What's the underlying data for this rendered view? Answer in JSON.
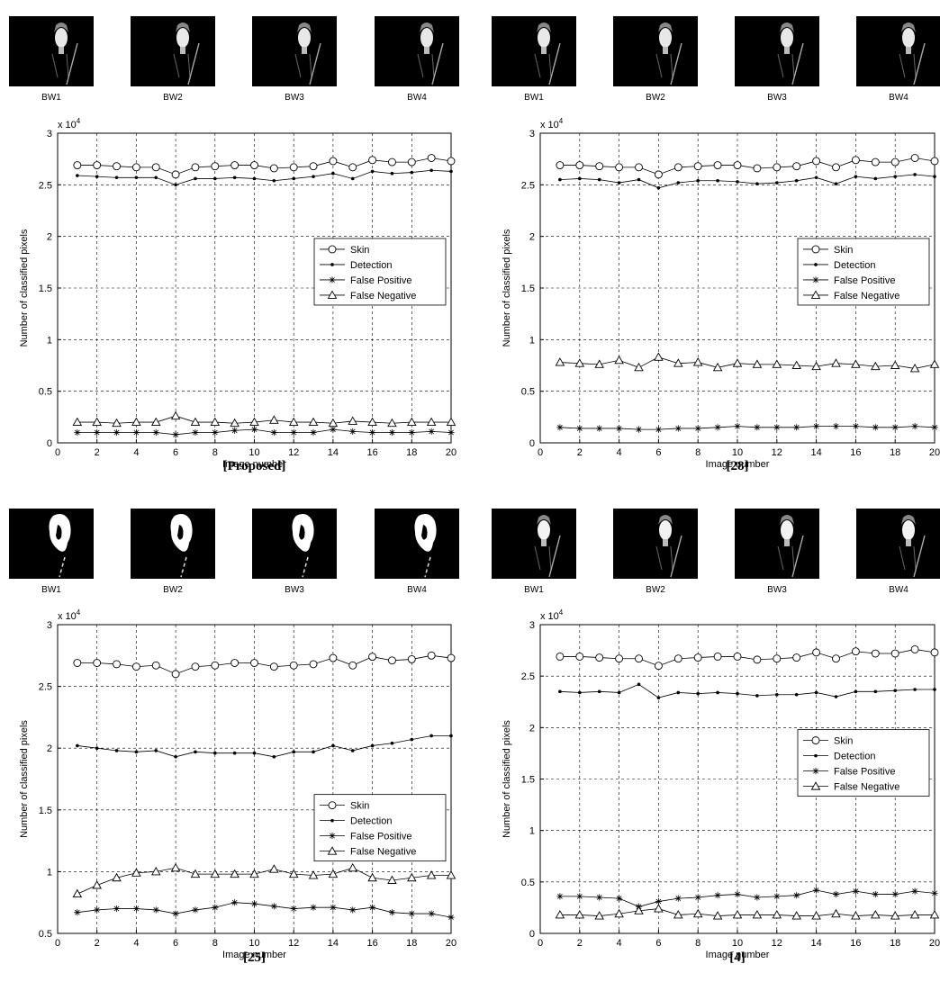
{
  "thumb_labels": [
    "BW1",
    "BW2",
    "BW3",
    "BW4"
  ],
  "legend": [
    "Skin",
    "Detection",
    "False Positive",
    "False Negative"
  ],
  "chart_data": [
    {
      "type": "line",
      "caption": "[Proposed]",
      "xlabel": "Image number",
      "ylabel": "Number of classified pixels",
      "exponent_label": "x 10^4",
      "xlim": [
        0,
        20
      ],
      "ylim": [
        0,
        3
      ],
      "xticks": [
        0,
        2,
        4,
        6,
        8,
        10,
        12,
        14,
        16,
        18,
        20
      ],
      "yticks": [
        0,
        0.5,
        1,
        1.5,
        2,
        2.5,
        3
      ],
      "grid": true,
      "legend_position": "right",
      "x": [
        1,
        2,
        3,
        4,
        5,
        6,
        7,
        8,
        9,
        10,
        11,
        12,
        13,
        14,
        15,
        16,
        17,
        18,
        19,
        20
      ],
      "series": [
        {
          "name": "Skin",
          "marker": "circle",
          "values": [
            2.69,
            2.69,
            2.68,
            2.67,
            2.67,
            2.6,
            2.67,
            2.68,
            2.69,
            2.69,
            2.66,
            2.67,
            2.68,
            2.73,
            2.67,
            2.74,
            2.72,
            2.72,
            2.76,
            2.73
          ]
        },
        {
          "name": "Detection",
          "marker": "dot",
          "values": [
            2.59,
            2.58,
            2.57,
            2.57,
            2.57,
            2.5,
            2.56,
            2.56,
            2.57,
            2.56,
            2.54,
            2.56,
            2.58,
            2.61,
            2.56,
            2.63,
            2.61,
            2.62,
            2.64,
            2.63
          ]
        },
        {
          "name": "False Positive",
          "marker": "star",
          "values": [
            0.1,
            0.1,
            0.1,
            0.1,
            0.1,
            0.08,
            0.1,
            0.1,
            0.12,
            0.13,
            0.1,
            0.1,
            0.1,
            0.13,
            0.11,
            0.1,
            0.1,
            0.1,
            0.11,
            0.1
          ]
        },
        {
          "name": "False Negative",
          "marker": "triangle",
          "values": [
            0.2,
            0.2,
            0.19,
            0.2,
            0.2,
            0.26,
            0.2,
            0.2,
            0.19,
            0.2,
            0.22,
            0.2,
            0.2,
            0.19,
            0.21,
            0.2,
            0.19,
            0.2,
            0.2,
            0.2
          ]
        }
      ]
    },
    {
      "type": "line",
      "caption": "[28]",
      "xlabel": "Image number",
      "ylabel": "Number of classified pixels",
      "exponent_label": "x 10^4",
      "xlim": [
        0,
        20
      ],
      "ylim": [
        0,
        3
      ],
      "xticks": [
        0,
        2,
        4,
        6,
        8,
        10,
        12,
        14,
        16,
        18,
        20
      ],
      "yticks": [
        0,
        0.5,
        1,
        1.5,
        2,
        2.5,
        3
      ],
      "grid": true,
      "legend_position": "right",
      "x": [
        1,
        2,
        3,
        4,
        5,
        6,
        7,
        8,
        9,
        10,
        11,
        12,
        13,
        14,
        15,
        16,
        17,
        18,
        19,
        20
      ],
      "series": [
        {
          "name": "Skin",
          "marker": "circle",
          "values": [
            2.69,
            2.69,
            2.68,
            2.67,
            2.67,
            2.6,
            2.67,
            2.68,
            2.69,
            2.69,
            2.66,
            2.67,
            2.68,
            2.73,
            2.67,
            2.74,
            2.72,
            2.72,
            2.76,
            2.73
          ]
        },
        {
          "name": "Detection",
          "marker": "dot",
          "values": [
            2.55,
            2.56,
            2.55,
            2.52,
            2.55,
            2.47,
            2.52,
            2.54,
            2.54,
            2.53,
            2.51,
            2.52,
            2.54,
            2.57,
            2.51,
            2.58,
            2.56,
            2.58,
            2.6,
            2.58
          ]
        },
        {
          "name": "False Positive",
          "marker": "star",
          "values": [
            0.15,
            0.14,
            0.14,
            0.14,
            0.13,
            0.13,
            0.14,
            0.14,
            0.15,
            0.16,
            0.15,
            0.15,
            0.15,
            0.16,
            0.16,
            0.16,
            0.15,
            0.15,
            0.16,
            0.15
          ]
        },
        {
          "name": "False Negative",
          "marker": "triangle",
          "values": [
            0.78,
            0.77,
            0.76,
            0.8,
            0.73,
            0.83,
            0.77,
            0.78,
            0.73,
            0.77,
            0.76,
            0.76,
            0.75,
            0.74,
            0.77,
            0.76,
            0.74,
            0.75,
            0.72,
            0.76
          ]
        }
      ]
    },
    {
      "type": "line",
      "caption": "[25]",
      "xlabel": "Image number",
      "ylabel": "Number of classified pixels",
      "exponent_label": "x 10^4",
      "xlim": [
        0,
        20
      ],
      "ylim": [
        0.5,
        3
      ],
      "xticks": [
        0,
        2,
        4,
        6,
        8,
        10,
        12,
        14,
        16,
        18,
        20
      ],
      "yticks": [
        0.5,
        1,
        1.5,
        2,
        2.5,
        3
      ],
      "grid": true,
      "legend_position": "right",
      "x": [
        1,
        2,
        3,
        4,
        5,
        6,
        7,
        8,
        9,
        10,
        11,
        12,
        13,
        14,
        15,
        16,
        17,
        18,
        19,
        20
      ],
      "series": [
        {
          "name": "Skin",
          "marker": "circle",
          "values": [
            2.69,
            2.69,
            2.68,
            2.66,
            2.67,
            2.6,
            2.66,
            2.67,
            2.69,
            2.69,
            2.66,
            2.67,
            2.68,
            2.73,
            2.67,
            2.74,
            2.71,
            2.72,
            2.75,
            2.73
          ]
        },
        {
          "name": "Detection",
          "marker": "dot",
          "values": [
            2.02,
            2.0,
            1.98,
            1.97,
            1.98,
            1.93,
            1.97,
            1.96,
            1.96,
            1.96,
            1.93,
            1.97,
            1.97,
            2.02,
            1.98,
            2.02,
            2.04,
            2.07,
            2.1,
            2.1
          ]
        },
        {
          "name": "False Positive",
          "marker": "star",
          "values": [
            0.67,
            0.69,
            0.7,
            0.7,
            0.69,
            0.66,
            0.69,
            0.71,
            0.75,
            0.74,
            0.72,
            0.7,
            0.71,
            0.71,
            0.69,
            0.71,
            0.67,
            0.66,
            0.66,
            0.63
          ]
        },
        {
          "name": "False Negative",
          "marker": "triangle",
          "values": [
            0.82,
            0.89,
            0.95,
            0.99,
            1.0,
            1.03,
            0.98,
            0.98,
            0.98,
            0.98,
            1.02,
            0.98,
            0.97,
            0.98,
            1.03,
            0.95,
            0.93,
            0.95,
            0.97,
            0.97
          ]
        }
      ]
    },
    {
      "type": "line",
      "caption": "[4]",
      "xlabel": "Image number",
      "ylabel": "Number of classified pixels",
      "exponent_label": "x 10^4",
      "xlim": [
        0,
        20
      ],
      "ylim": [
        0,
        3
      ],
      "xticks": [
        0,
        2,
        4,
        6,
        8,
        10,
        12,
        14,
        16,
        18,
        20
      ],
      "yticks": [
        0,
        0.5,
        1,
        1.5,
        2,
        2.5,
        3
      ],
      "grid": true,
      "legend_position": "right",
      "x": [
        1,
        2,
        3,
        4,
        5,
        6,
        7,
        8,
        9,
        10,
        11,
        12,
        13,
        14,
        15,
        16,
        17,
        18,
        19,
        20
      ],
      "series": [
        {
          "name": "Skin",
          "marker": "circle",
          "values": [
            2.69,
            2.69,
            2.68,
            2.67,
            2.67,
            2.6,
            2.67,
            2.68,
            2.69,
            2.69,
            2.66,
            2.67,
            2.68,
            2.73,
            2.67,
            2.74,
            2.72,
            2.72,
            2.76,
            2.73
          ]
        },
        {
          "name": "Detection",
          "marker": "dot",
          "values": [
            2.35,
            2.34,
            2.35,
            2.34,
            2.42,
            2.29,
            2.34,
            2.33,
            2.34,
            2.33,
            2.31,
            2.32,
            2.32,
            2.34,
            2.3,
            2.35,
            2.35,
            2.36,
            2.37,
            2.37
          ]
        },
        {
          "name": "False Positive",
          "marker": "star",
          "values": [
            0.36,
            0.36,
            0.35,
            0.34,
            0.26,
            0.31,
            0.34,
            0.35,
            0.37,
            0.38,
            0.35,
            0.36,
            0.37,
            0.42,
            0.38,
            0.41,
            0.38,
            0.38,
            0.41,
            0.39
          ]
        },
        {
          "name": "False Negative",
          "marker": "triangle",
          "values": [
            0.18,
            0.18,
            0.17,
            0.19,
            0.22,
            0.24,
            0.18,
            0.19,
            0.17,
            0.18,
            0.18,
            0.18,
            0.17,
            0.17,
            0.19,
            0.17,
            0.18,
            0.17,
            0.18,
            0.18
          ]
        }
      ]
    }
  ]
}
